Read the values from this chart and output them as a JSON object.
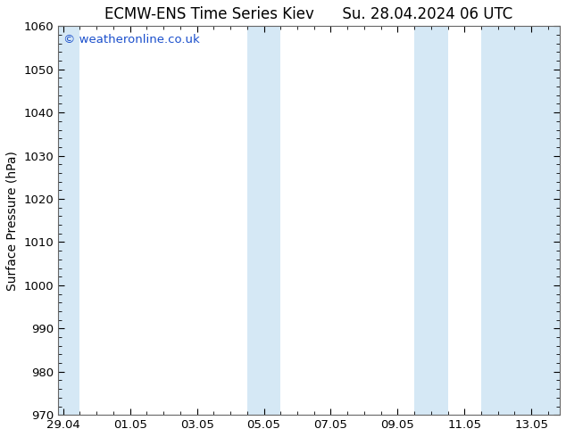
{
  "title_left": "ECMW-ENS Time Series Kiev",
  "title_right": "Su. 28.04.2024 06 UTC",
  "ylabel": "Surface Pressure (hPa)",
  "ylim": [
    970,
    1060
  ],
  "yticks": [
    970,
    980,
    990,
    1000,
    1010,
    1020,
    1030,
    1040,
    1050,
    1060
  ],
  "xtick_labels": [
    "29.04",
    "01.05",
    "03.05",
    "05.05",
    "07.05",
    "09.05",
    "11.05",
    "13.05"
  ],
  "xtick_positions": [
    0,
    2,
    4,
    6,
    8,
    10,
    12,
    14
  ],
  "xlim": [
    -0.15,
    14.85
  ],
  "background_color": "#ffffff",
  "plot_bg_color": "#ffffff",
  "shaded_band_color": "#d5e8f5",
  "watermark_text": "© weatheronline.co.uk",
  "watermark_color": "#1a4fcc",
  "title_fontsize": 12,
  "axis_label_fontsize": 10,
  "tick_fontsize": 9.5,
  "watermark_fontsize": 9.5,
  "shaded_columns": [
    {
      "start": -0.15,
      "end": 0.5
    },
    {
      "start": 5.5,
      "end": 6.5
    },
    {
      "start": 10.5,
      "end": 11.5
    },
    {
      "start": 12.5,
      "end": 14.85
    }
  ]
}
